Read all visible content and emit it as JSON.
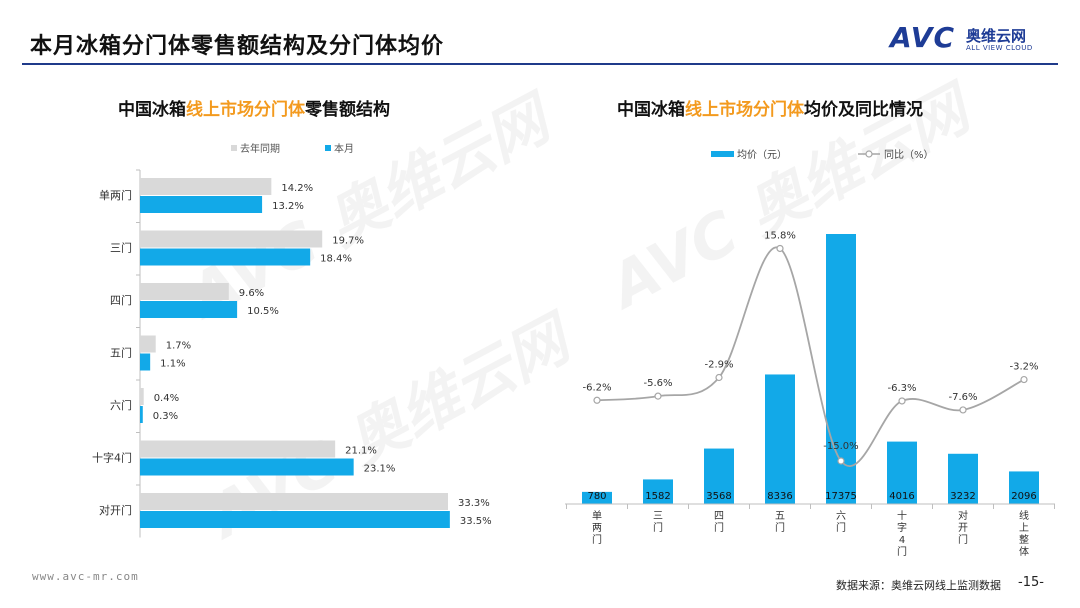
{
  "page": {
    "title": "本月冰箱分门体零售额结构及分门体均价",
    "logo_latin": "AVC",
    "logo_cn": "奥维云网",
    "logo_en": "ALL VIEW CLOUD",
    "footer_url": "www.avc-mr.com",
    "footer_source": "数据来源：奥维云网线上监测数据",
    "page_number": "-15-"
  },
  "colors": {
    "current": "#12a9e8",
    "last_year": "#d9d9d9",
    "line": "#a6a6a6",
    "highlight": "#f39a1e",
    "brand": "#1e3c96"
  },
  "chart_data": [
    {
      "type": "bar",
      "orientation": "horizontal",
      "title_parts": [
        "中国冰箱",
        "线上市场分门体",
        "零售额结构"
      ],
      "categories": [
        "单两门",
        "三门",
        "四门",
        "五门",
        "六门",
        "十字4门",
        "对开门"
      ],
      "series": [
        {
          "name": "去年同期",
          "values": [
            14.2,
            19.7,
            9.6,
            1.7,
            0.4,
            21.1,
            33.3
          ],
          "labels": [
            "14.2%",
            "19.7%",
            "9.6%",
            "1.7%",
            "0.4%",
            "21.1%",
            "33.3%"
          ]
        },
        {
          "name": "本月",
          "values": [
            13.2,
            18.4,
            10.5,
            1.1,
            0.3,
            23.1,
            33.5
          ],
          "labels": [
            "13.2%",
            "18.4%",
            "10.5%",
            "1.1%",
            "0.3%",
            "23.1%",
            "33.5%"
          ]
        }
      ],
      "xlim": [
        0,
        36
      ],
      "legend": "top"
    },
    {
      "type": "bar+line",
      "title_parts": [
        "中国冰箱",
        "线上市场分门体",
        "均价及同比情况"
      ],
      "categories": [
        "单两门",
        "三门",
        "四门",
        "五门",
        "六门",
        "十字4门",
        "对开门",
        "线上整体"
      ],
      "bar_series": {
        "name": "均价（元）",
        "values": [
          780,
          1582,
          3568,
          8336,
          17375,
          4016,
          3232,
          2096
        ],
        "labels": [
          "780",
          "1582",
          "3568",
          "8336",
          "17375",
          "4016",
          "3232",
          "2096"
        ]
      },
      "line_series": {
        "name": "同比（%）",
        "values": [
          -6.2,
          -5.6,
          -2.9,
          15.8,
          -15.0,
          -6.3,
          -7.6,
          -3.2
        ],
        "labels": [
          "-6.2%",
          "-5.6%",
          "-2.9%",
          "15.8%",
          "-15.0%",
          "-6.3%",
          "-7.6%",
          "-3.2%"
        ]
      },
      "ylim_bar": [
        0,
        18000
      ],
      "ylim_line": [
        -20,
        20
      ],
      "legend": "top"
    }
  ]
}
